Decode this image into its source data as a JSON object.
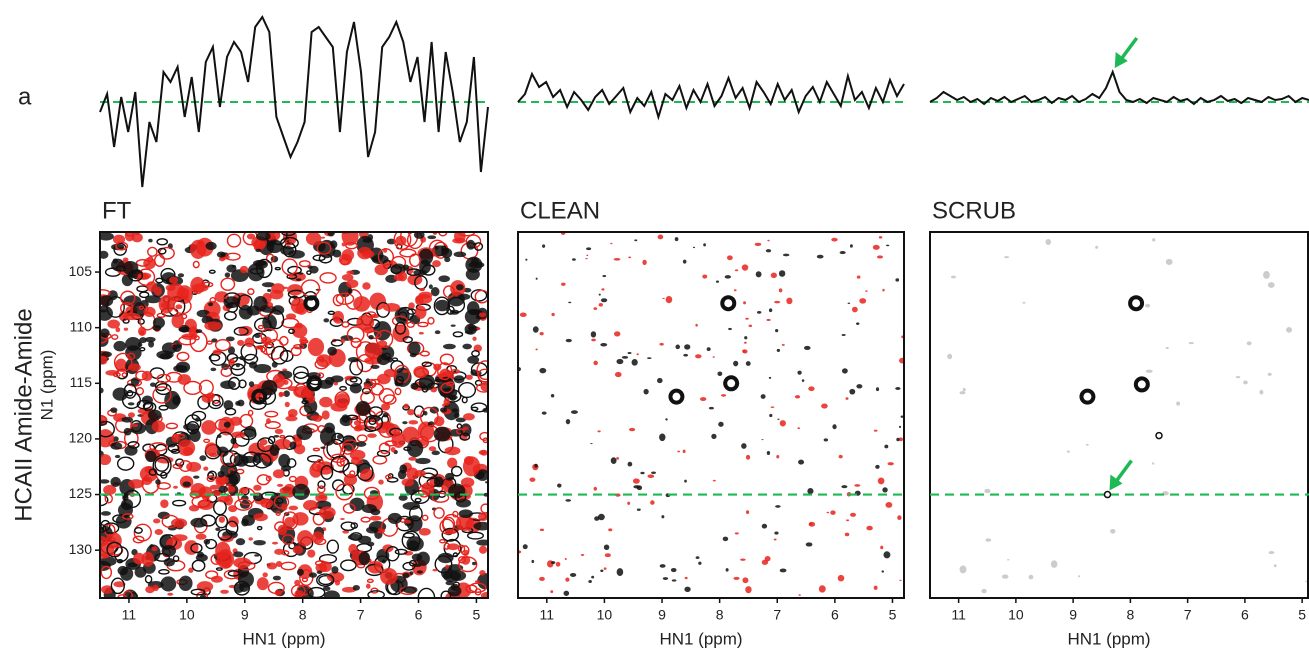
{
  "panel_label": "a",
  "figure_ylabel": "HCAII Amide-Amide",
  "chart_data": [
    {
      "type": "scatter",
      "title": "FT",
      "xlabel": "HN1 (ppm)",
      "ylabel": "N1 (ppm)",
      "xlim": [
        11.5,
        4.8
      ],
      "ylim": [
        101.4,
        134.3
      ],
      "xticks": [
        11,
        10,
        9,
        8,
        7,
        6,
        5
      ],
      "yticks": [
        105,
        110,
        115,
        120,
        125,
        130
      ],
      "reference_line": 125,
      "noise": "dense",
      "series": [
        {
          "name": "positive",
          "color": "#111111",
          "x": [
            7.85,
            8.75,
            7.8
          ],
          "y": [
            107.8,
            116.2,
            115.0
          ]
        }
      ],
      "trace": {
        "color": "#111111",
        "values": [
          -10,
          8,
          -45,
          5,
          -30,
          10,
          -85,
          -20,
          -40,
          30,
          20,
          35,
          -15,
          25,
          -30,
          40,
          55,
          -5,
          45,
          60,
          50,
          20,
          75,
          85,
          70,
          -15,
          -35,
          -55,
          -40,
          -20,
          70,
          75,
          65,
          55,
          -30,
          50,
          80,
          30,
          -55,
          -30,
          55,
          65,
          80,
          60,
          20,
          45,
          -20,
          60,
          -30,
          50,
          10,
          -40,
          -20,
          45,
          -70,
          -5
        ]
      }
    },
    {
      "type": "scatter",
      "title": "CLEAN",
      "xlabel": "HN1 (ppm)",
      "xlim": [
        11.5,
        4.8
      ],
      "ylim": [
        101.4,
        134.3
      ],
      "xticks": [
        11,
        10,
        9,
        8,
        7,
        6,
        5
      ],
      "reference_line": 125,
      "noise": "sparse",
      "series": [
        {
          "name": "positive",
          "color": "#111111",
          "x": [
            7.85,
            8.75,
            7.8
          ],
          "y": [
            107.8,
            116.2,
            115.0
          ]
        }
      ],
      "trace": {
        "color": "#111111",
        "values": [
          0,
          8,
          28,
          15,
          20,
          5,
          12,
          -5,
          10,
          2,
          -8,
          5,
          12,
          -2,
          6,
          14,
          -10,
          4,
          -4,
          10,
          -15,
          8,
          2,
          16,
          -6,
          12,
          0,
          18,
          -4,
          6,
          24,
          4,
          14,
          -6,
          20,
          10,
          -2,
          18,
          2,
          12,
          -10,
          6,
          15,
          0,
          20,
          8,
          -4,
          26,
          2,
          10,
          -6,
          14,
          0,
          22,
          6,
          18
        ]
      }
    },
    {
      "type": "scatter",
      "title": "SCRUB",
      "xlabel": "HN1 (ppm)",
      "xlim": [
        11.5,
        4.88
      ],
      "ylim": [
        101.4,
        134.3
      ],
      "xticks": [
        11,
        10,
        9,
        8,
        7,
        6,
        5
      ],
      "reference_line": 125,
      "noise": "faint",
      "series": [
        {
          "name": "positive",
          "color": "#111111",
          "x": [
            7.9,
            8.75,
            7.8,
            7.5,
            8.4
          ],
          "y": [
            107.8,
            116.2,
            115.1,
            119.7,
            125.0
          ]
        }
      ],
      "arrow_target": 4,
      "trace": {
        "color": "#111111",
        "values": [
          0,
          4,
          10,
          6,
          2,
          5,
          0,
          3,
          -2,
          4,
          1,
          5,
          0,
          3,
          6,
          0,
          2,
          5,
          -1,
          4,
          2,
          6,
          0,
          3,
          8,
          4,
          14,
          30,
          10,
          2,
          0,
          3,
          -1,
          4,
          2,
          0,
          5,
          1,
          3,
          -2,
          4,
          0,
          2,
          6,
          1,
          3,
          -1,
          4,
          2,
          0,
          5,
          2,
          3,
          6,
          0,
          4,
          2
        ]
      }
    }
  ]
}
